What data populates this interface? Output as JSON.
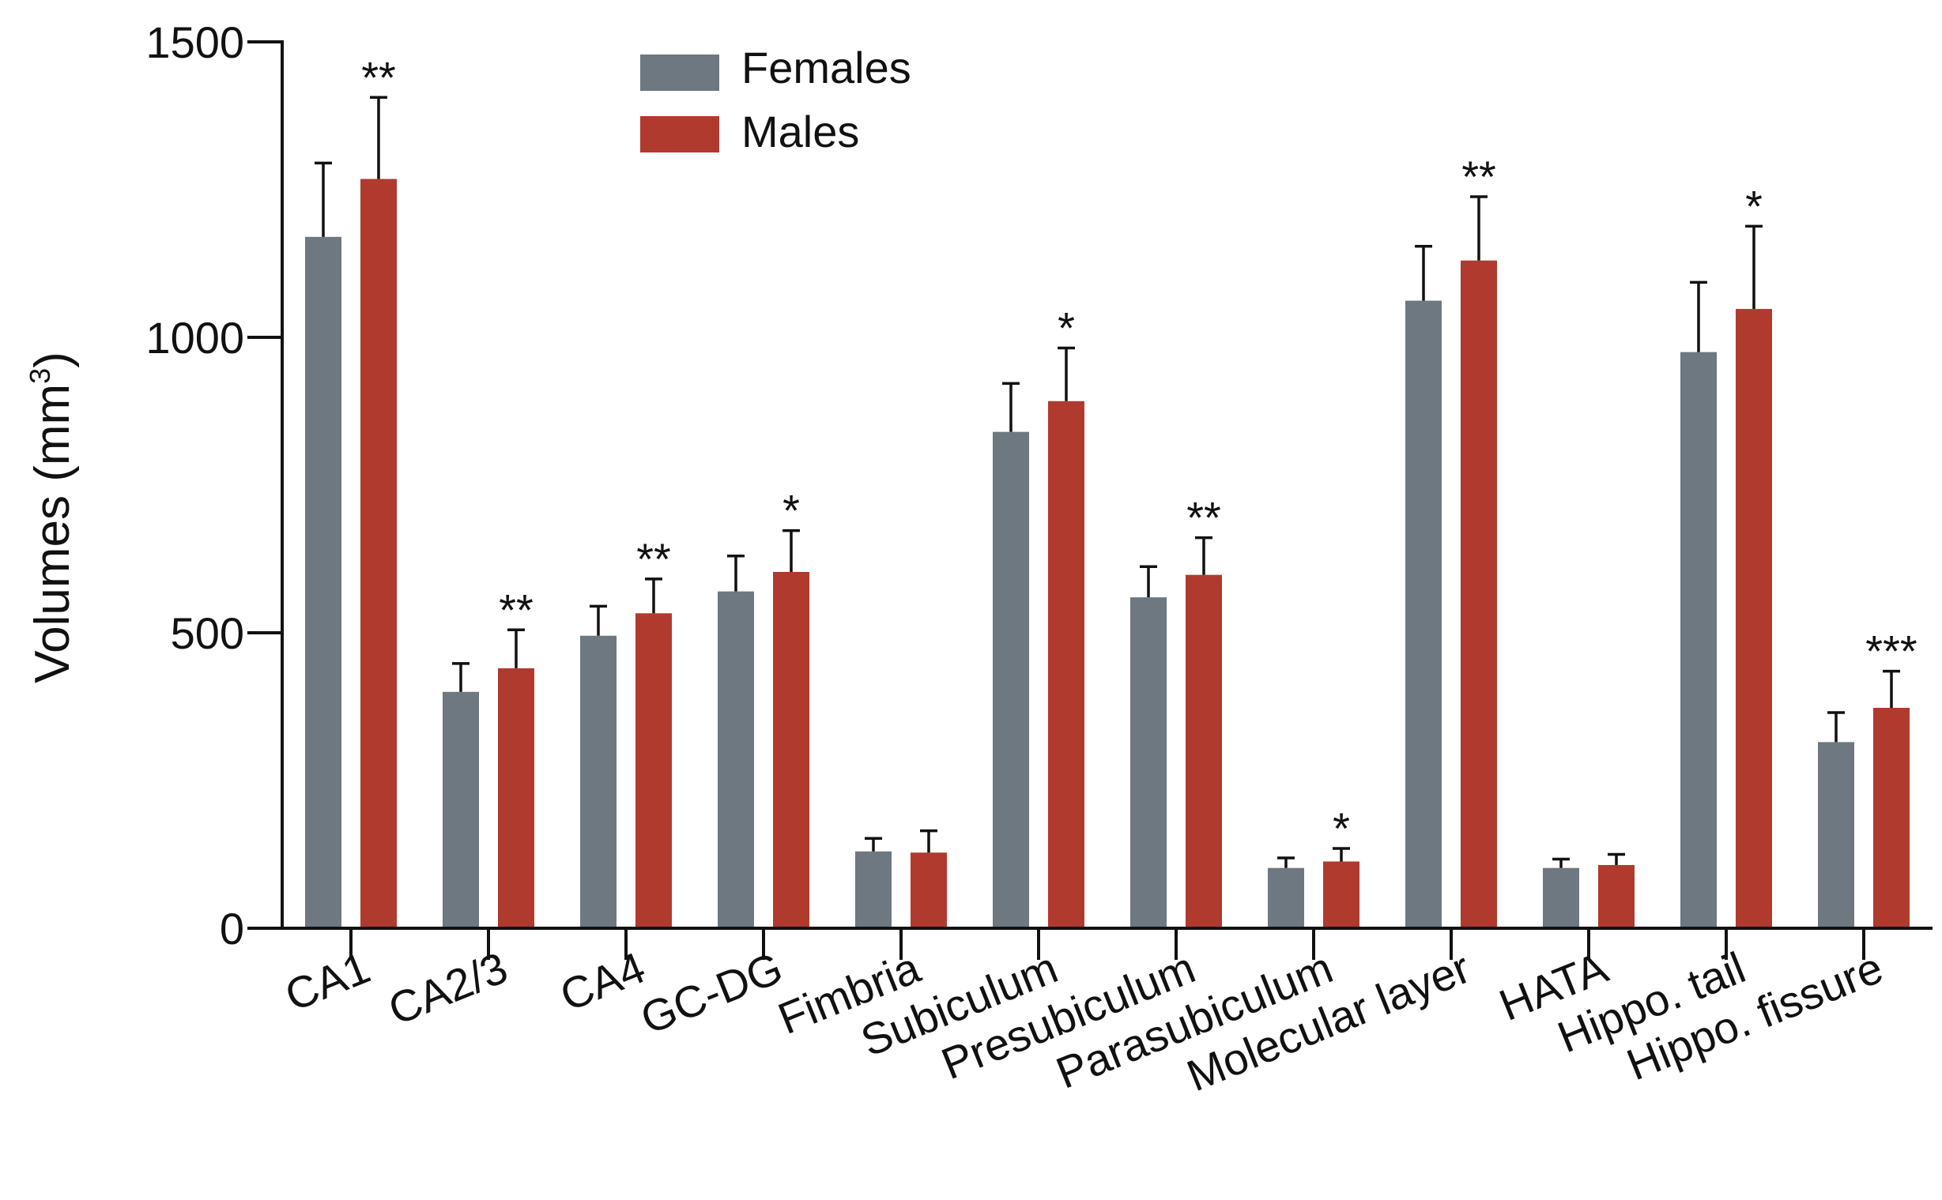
{
  "chart_data": {
    "type": "bar",
    "title": "",
    "xlabel": "",
    "ylabel": "Volumes (mm",
    "ylabel_superscript": "3",
    "ylabel_close": ")",
    "ylim": [
      0,
      1500
    ],
    "yticks": [
      0,
      500,
      1000,
      1500
    ],
    "ytick_labels": [
      "0",
      "500",
      "1000",
      "1500"
    ],
    "legend_position": "top-center",
    "categories": [
      "CA1",
      "CA2/3",
      "CA4",
      "GC-DG",
      "Fimbria",
      "Subiculum",
      "Presubiculum",
      "Parasubiculum",
      "Molecular layer",
      "HATA",
      "Hippo. tail",
      "Hippo. fissure"
    ],
    "series": [
      {
        "name": "Females",
        "color": "#6d7880",
        "values": [
          1170,
          400,
          495,
          570,
          130,
          840,
          560,
          102,
          1062,
          102,
          975,
          315
        ],
        "errors": [
          125,
          48,
          50,
          60,
          22,
          82,
          52,
          17,
          92,
          15,
          118,
          50
        ]
      },
      {
        "name": "Males",
        "color": "#b03a2e",
        "values": [
          1268,
          440,
          533,
          603,
          128,
          892,
          598,
          113,
          1130,
          107,
          1048,
          373
        ],
        "errors": [
          138,
          65,
          58,
          70,
          37,
          90,
          63,
          22,
          108,
          18,
          140,
          62
        ]
      }
    ],
    "significance": [
      "**",
      "**",
      "**",
      "*",
      "",
      "*",
      "**",
      "*",
      "**",
      "",
      "*",
      "***"
    ]
  }
}
